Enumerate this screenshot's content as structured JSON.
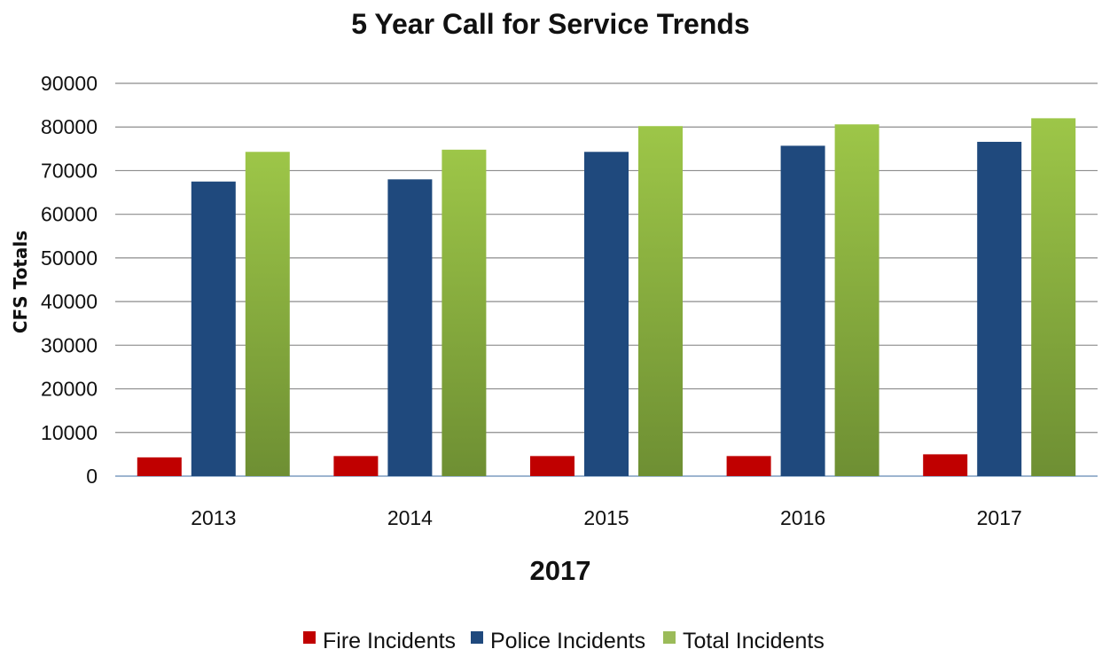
{
  "chart_data": {
    "type": "bar",
    "title": "5 Year Call for Service Trends",
    "xlabel": "2017",
    "ylabel": "CFS Totals",
    "categories": [
      "2013",
      "2014",
      "2015",
      "2016",
      "2017"
    ],
    "ylim": [
      0,
      90000
    ],
    "yticks": [
      0,
      10000,
      20000,
      30000,
      40000,
      50000,
      60000,
      70000,
      80000,
      90000
    ],
    "grid": true,
    "legend_position": "bottom",
    "series": [
      {
        "name": "Fire Incidents",
        "color": "#C00000",
        "values": [
          4300,
          4600,
          4600,
          4600,
          5000
        ]
      },
      {
        "name": "Police Incidents",
        "color": "#1F497D",
        "values": [
          67500,
          68000,
          74300,
          75700,
          76600
        ]
      },
      {
        "name": "Total Incidents",
        "color": "#9BBB59",
        "values": [
          74300,
          74800,
          80200,
          80600,
          82000
        ]
      }
    ]
  }
}
